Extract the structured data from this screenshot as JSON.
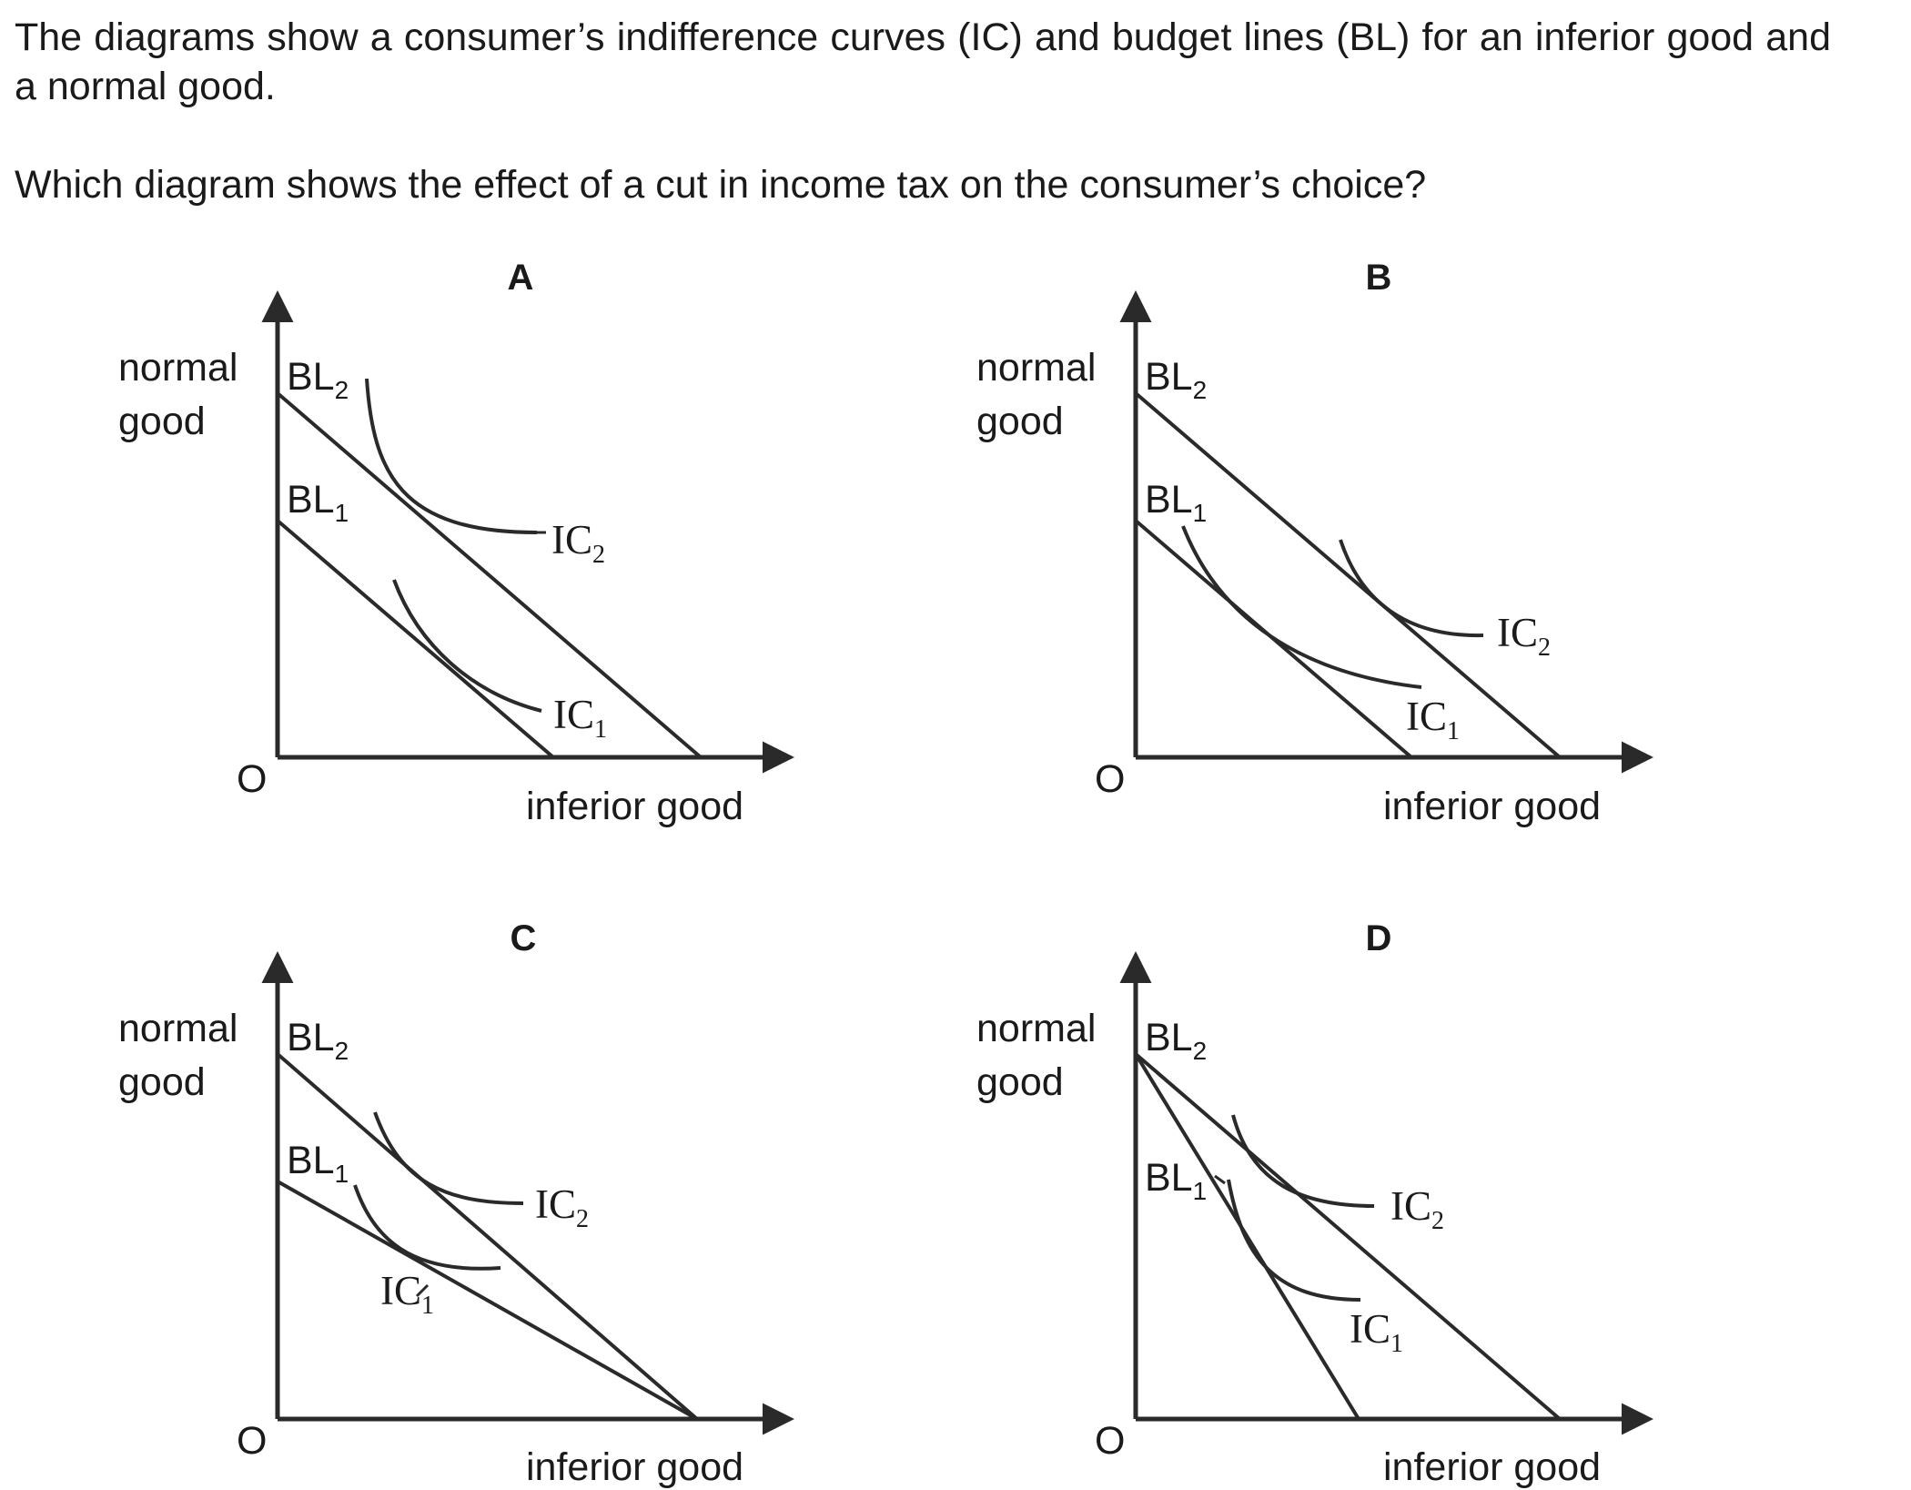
{
  "question": {
    "stem": "The diagrams show a consumer’s indifference curves (IC) and budget lines (BL) for an inferior good and a normal good.",
    "prompt": "Which diagram shows the effect of a cut in income tax on the consumer’s choice?"
  },
  "labels": {
    "y_axis_line1": "normal",
    "y_axis_line2": "good",
    "x_axis": "inferior good",
    "origin": "O",
    "bl": "BL",
    "ic": "IC",
    "sub1": "1",
    "sub2": "2"
  },
  "panels": [
    {
      "letter": "A"
    },
    {
      "letter": "B"
    },
    {
      "letter": "C"
    },
    {
      "letter": "D"
    }
  ]
}
